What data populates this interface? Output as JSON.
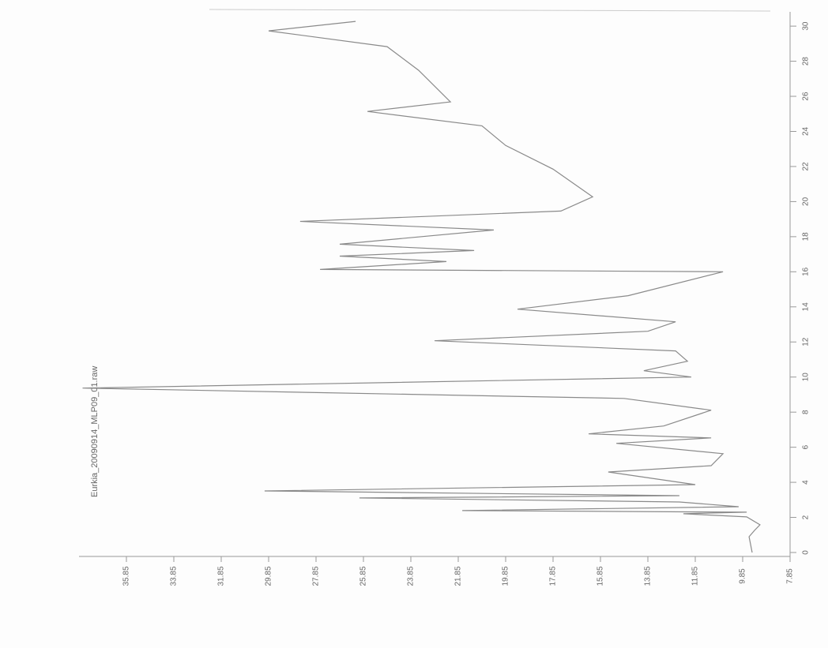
{
  "chart_data": {
    "type": "line",
    "title": "Eurkia_20090914_MLP09_01.raw",
    "x": [
      0,
      0.9,
      1.26,
      1.58,
      2.03,
      2.21,
      2.3,
      2.39,
      2.61,
      2.88,
      3.11,
      3.24,
      3.51,
      3.87,
      4.59,
      4.95,
      5.63,
      6.22,
      6.53,
      6.76,
      7.21,
      8.11,
      8.78,
      9.37,
      10.0,
      10.36,
      10.9,
      11.49,
      12.07,
      12.61,
      13.15,
      13.87,
      14.64,
      16.0,
      16.13,
      16.58,
      16.89,
      17.21,
      17.57,
      18.38,
      18.87,
      19.46,
      20.27,
      21.85,
      23.2,
      24.32,
      25.14,
      25.68,
      27.48,
      28.83,
      29.73,
      30.27
    ],
    "values": [
      9.45,
      9.58,
      9.35,
      9.12,
      9.68,
      12.35,
      9.68,
      21.68,
      10.02,
      12.52,
      26.02,
      12.52,
      30.02,
      11.85,
      15.52,
      11.18,
      10.68,
      15.18,
      11.18,
      16.35,
      13.18,
      11.18,
      14.85,
      37.7,
      12.02,
      14.02,
      12.18,
      12.68,
      22.85,
      13.85,
      12.68,
      19.35,
      14.68,
      10.68,
      27.68,
      22.35,
      26.85,
      21.18,
      26.85,
      20.35,
      28.52,
      17.52,
      16.18,
      17.85,
      19.85,
      20.85,
      25.68,
      22.18,
      23.52,
      24.85,
      29.85,
      26.18
    ],
    "color": "#8a8a8a",
    "xlim": [
      0,
      30.5
    ],
    "xticks": [
      0,
      2,
      4,
      6,
      8,
      10,
      12,
      14,
      16,
      18,
      20,
      22,
      24,
      26,
      28,
      30
    ],
    "ylim": [
      7.85,
      38.85
    ],
    "yticks": [
      7.85,
      9.85,
      11.85,
      13.85,
      15.85,
      17.85,
      19.85,
      21.85,
      23.85,
      25.85,
      27.85,
      29.85,
      31.85,
      33.85,
      35.85
    ]
  }
}
